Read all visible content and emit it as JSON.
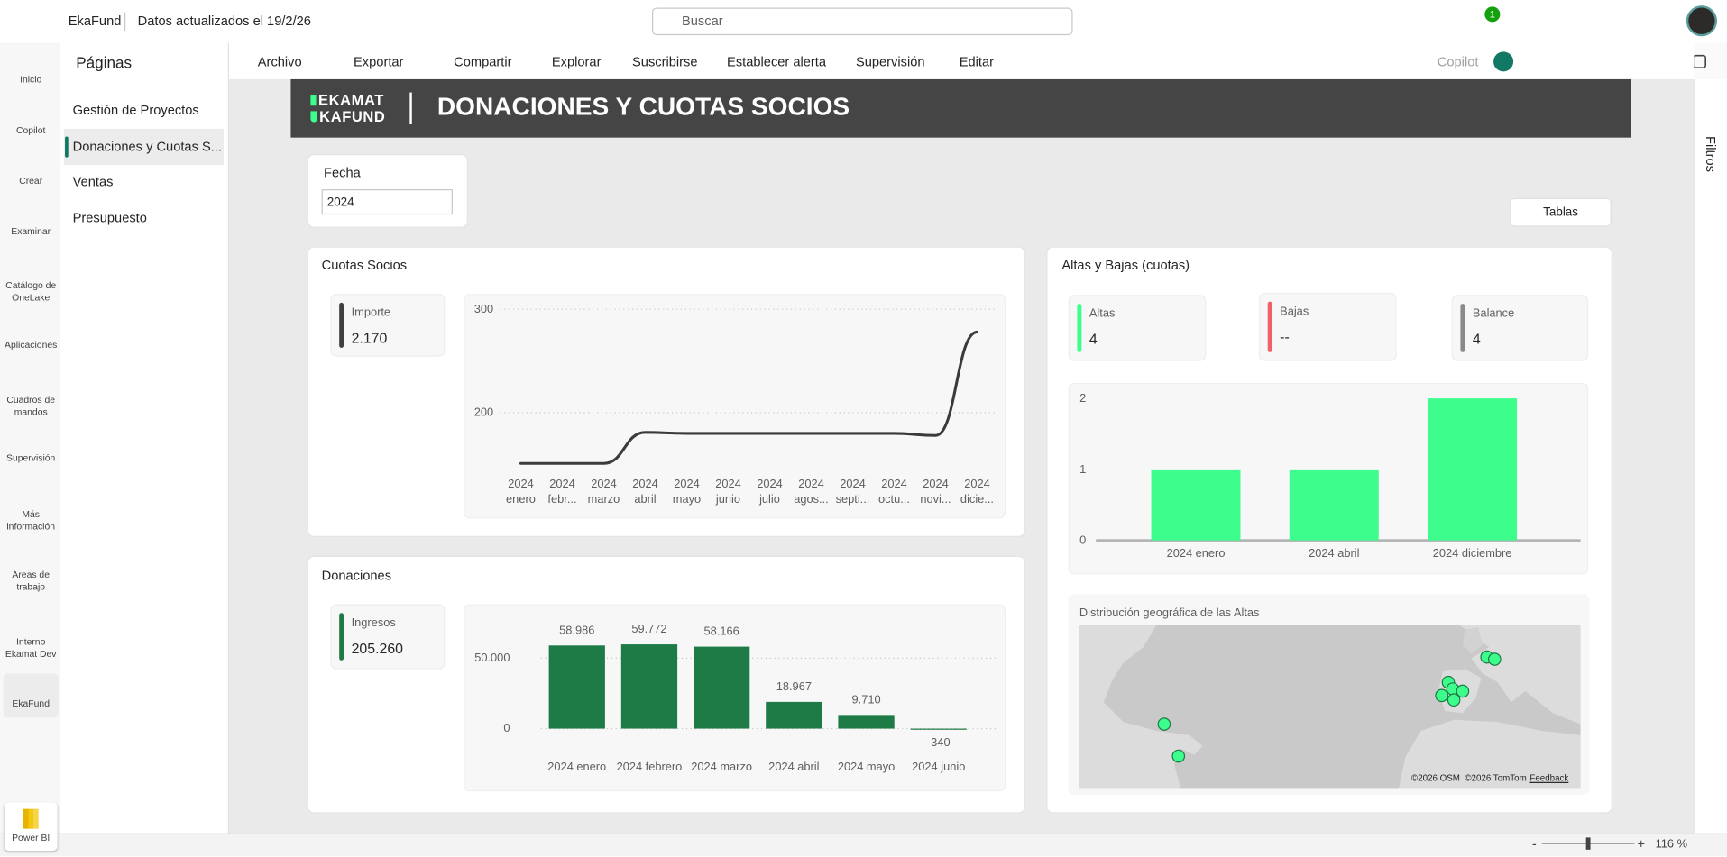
{
  "top_bar": {
    "app_name": "EkaFund",
    "data_updated": "Datos actualizados el 19/2/26",
    "search_placeholder": "Buscar",
    "notifications": "1"
  },
  "nav_rail": {
    "items": [
      {
        "label": "Inicio",
        "selected": false
      },
      {
        "label": "Copilot",
        "selected": false
      },
      {
        "label": "Crear",
        "selected": false
      },
      {
        "label": "Examinar",
        "selected": false
      },
      {
        "label": "Catálogo de OneLake",
        "selected": false
      },
      {
        "label": "Aplicaciones",
        "selected": false
      },
      {
        "label": "Cuadros de mandos",
        "selected": false
      },
      {
        "label": "Supervisión",
        "selected": false
      },
      {
        "label": "Más información",
        "selected": false
      },
      {
        "label": "Áreas de trabajo",
        "selected": false
      },
      {
        "label": "Interno Ekamat Dev",
        "selected": false
      },
      {
        "label": "EkaFund",
        "selected": true
      }
    ],
    "product": "Power BI"
  },
  "pages_panel": {
    "title": "Páginas",
    "items": [
      {
        "label": "Gestión de Proyectos",
        "selected": false
      },
      {
        "label": "Donaciones y Cuotas S...",
        "selected": true
      },
      {
        "label": "Ventas",
        "selected": false
      },
      {
        "label": "Presupuesto",
        "selected": false
      }
    ]
  },
  "toolbar": {
    "items": [
      "Archivo",
      "Exportar",
      "Compartir",
      "Explorar",
      "Suscribirse",
      "Establecer alerta",
      "Supervisión",
      "Editar"
    ],
    "copilot": "Copilot"
  },
  "report": {
    "logo": [
      "EKAMAT",
      "KAFUND"
    ],
    "title": "DONACIONES Y CUOTAS SOCIOS",
    "filter": {
      "label": "Fecha",
      "value": "2024"
    },
    "button": "Tablas",
    "kpis": [
      {
        "label": "Importe",
        "value": "2.170",
        "color": "#404040"
      },
      {
        "label": "Ingresos",
        "value": "205.260",
        "color": "#1e7b46"
      },
      {
        "label": "Altas",
        "value": "4",
        "color": "#3dfd8c"
      },
      {
        "label": "Bajas",
        "value": "--",
        "color": "#f0616a"
      },
      {
        "label": "Balance",
        "value": "4",
        "color": "#8a8a8a"
      }
    ],
    "map": {
      "title": "Distribución geográfica de las Altas",
      "attribution": "©2026 OSM  ©2026 TomTom",
      "feedback": "Feedback"
    }
  },
  "chart_data": [
    {
      "type": "line",
      "title": "Cuotas Socios",
      "categories": [
        "2024 enero",
        "2024 febr...",
        "2024 marzo",
        "2024 abril",
        "2024 mayo",
        "2024 junio",
        "2024 julio",
        "2024 agos...",
        "2024 septi...",
        "2024 octu...",
        "2024 novi...",
        "2024 dicie..."
      ],
      "values": [
        151,
        151,
        151,
        181,
        180,
        180,
        180,
        180,
        180,
        180,
        178,
        278
      ],
      "ylim": [
        145,
        305
      ],
      "yticks": [
        200,
        300
      ],
      "color": "#3a3a3a",
      "grid": true
    },
    {
      "type": "bar",
      "title": "Donaciones",
      "categories": [
        "2024 enero",
        "2024 febrero",
        "2024 marzo",
        "2024 abril",
        "2024 mayo",
        "2024 junio"
      ],
      "values": [
        58986,
        59772,
        58166,
        18967,
        9710,
        -340
      ],
      "value_labels": [
        "58.986",
        "59.772",
        "58.166",
        "18.967",
        "9.710",
        "-340"
      ],
      "ylim": [
        -2000,
        80000
      ],
      "yticks": [
        0,
        {
          "value": 50000,
          "label": "50.000"
        }
      ],
      "color": "#1e7b46",
      "grid": true
    },
    {
      "type": "bar",
      "title": "Altas y Bajas (cuotas)",
      "categories": [
        "2024 enero",
        "2024 abril",
        "2024 diciembre"
      ],
      "values": [
        1,
        1,
        2
      ],
      "ylim": [
        0,
        2
      ],
      "yticks": [
        0,
        1,
        2
      ],
      "color": "#3dfd8c",
      "grid": false
    }
  ],
  "filters_pane": "Filtros",
  "status_bar": {
    "zoom_out": "-",
    "zoom_in": "+",
    "zoom": "116 %"
  }
}
